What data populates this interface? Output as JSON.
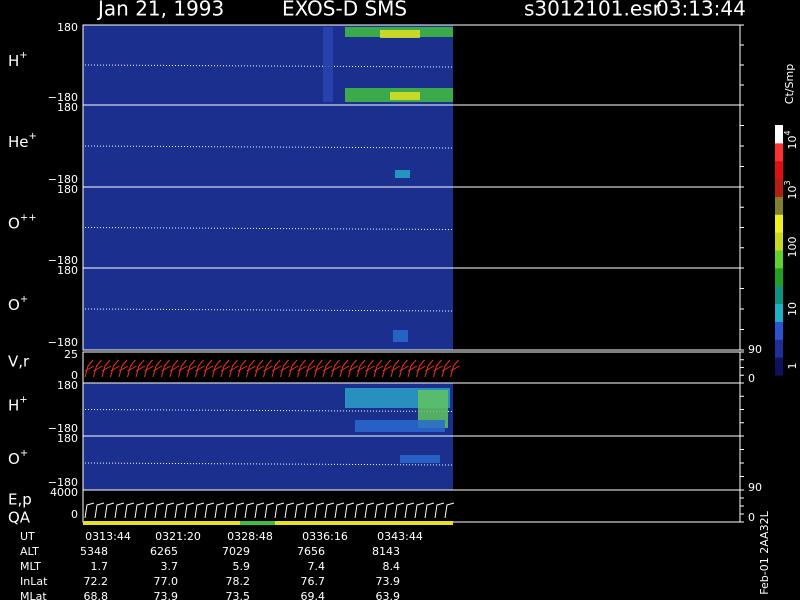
{
  "header": {
    "date": "Jan 21, 1993",
    "instrument": "EXOS-D SMS",
    "file": "s3012101.esr",
    "time": "03:13:44"
  },
  "panels": [
    {
      "label": {
        "base": "H",
        "sup": "+"
      },
      "ticks": [
        "180",
        "−180"
      ]
    },
    {
      "label": {
        "base": "He",
        "sup": "+"
      },
      "ticks": [
        "180",
        "−180"
      ]
    },
    {
      "label": {
        "base": "O",
        "sup": "++"
      },
      "ticks": [
        "180",
        "−180"
      ]
    },
    {
      "label": {
        "base": "O",
        "sup": "+"
      },
      "ticks": [
        "180",
        "−180"
      ]
    },
    {
      "label": "V,r",
      "ticks": [
        "25",
        "0"
      ],
      "right_ticks": [
        "90",
        "0"
      ]
    },
    {
      "label": {
        "base": "H",
        "sup": "+"
      },
      "ticks": [
        "180",
        "−180"
      ]
    },
    {
      "label": {
        "base": "O",
        "sup": "+"
      },
      "ticks": [
        "180",
        "−180"
      ]
    },
    {
      "label": "E,p",
      "label2": "QA",
      "ticks": [
        "4000",
        "0"
      ],
      "right_ticks": [
        "90",
        "0"
      ]
    }
  ],
  "colorbar": {
    "title": "Ct/Smp",
    "labels": [
      {
        "base": "10",
        "sup": "4"
      },
      {
        "base": "10",
        "sup": "3"
      },
      "100",
      "10",
      "1"
    ]
  },
  "footer": {
    "rows": [
      {
        "label": "UT",
        "values": [
          "0313:44",
          "0321:20",
          "0328:48",
          "0336:16",
          "0343:44"
        ]
      },
      {
        "label": "ALT",
        "values": [
          "5348",
          "6265",
          "7029",
          "7656",
          "8143"
        ]
      },
      {
        "label": "MLT",
        "values": [
          "1.7",
          "3.7",
          "5.9",
          "7.4",
          "8.4"
        ]
      },
      {
        "label": "InLat",
        "values": [
          "72.2",
          "77.0",
          "78.2",
          "76.7",
          "73.9"
        ]
      },
      {
        "label": "MLat",
        "values": [
          "68.8",
          "73.9",
          "73.5",
          "69.4",
          "63.9"
        ]
      }
    ]
  },
  "stamp": "Feb-01 2AA32L"
}
